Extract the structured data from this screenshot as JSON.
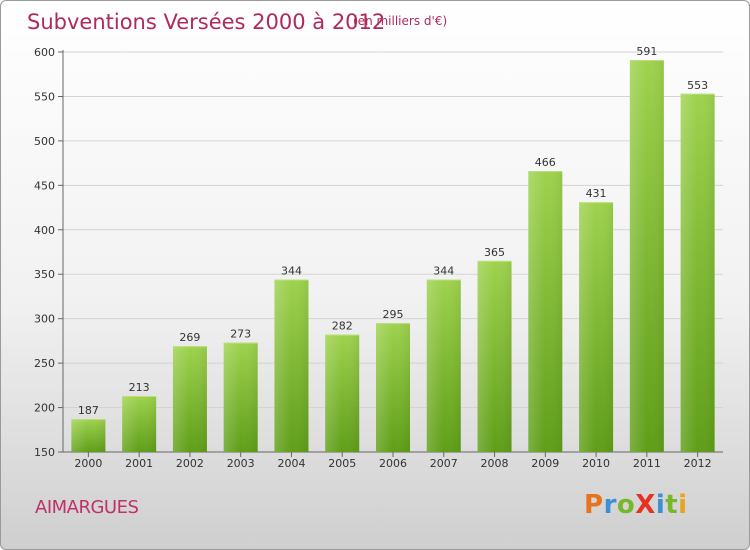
{
  "header": {
    "title": "Subventions Versées 2000 à 2012",
    "subtitle": "(en milliers d'€)"
  },
  "footer": {
    "commune": "AIMARGUES",
    "logo_text": "ProXiti"
  },
  "colors": {
    "title": "#b0295e",
    "bar_light": "#9ed24e",
    "bar_dark": "#5f9e18",
    "logo": [
      "#e8731e",
      "#3a8fd6",
      "#79b72a",
      "#e63222",
      "#3a8fd6",
      "#79b72a",
      "#e8a320"
    ]
  },
  "chart_data": {
    "type": "bar",
    "title": "Subventions Versées 2000 à 2012",
    "subtitle": "(en milliers d'€)",
    "categories": [
      "2000",
      "2001",
      "2002",
      "2003",
      "2004",
      "2005",
      "2006",
      "2007",
      "2008",
      "2009",
      "2010",
      "2011",
      "2012"
    ],
    "values": [
      187,
      213,
      269,
      273,
      344,
      282,
      295,
      344,
      365,
      466,
      431,
      591,
      553
    ],
    "ylim": [
      150,
      600
    ],
    "yticks": [
      150,
      200,
      250,
      300,
      350,
      400,
      450,
      500,
      550,
      600
    ],
    "grid": true,
    "xlabel": "",
    "ylabel": ""
  }
}
